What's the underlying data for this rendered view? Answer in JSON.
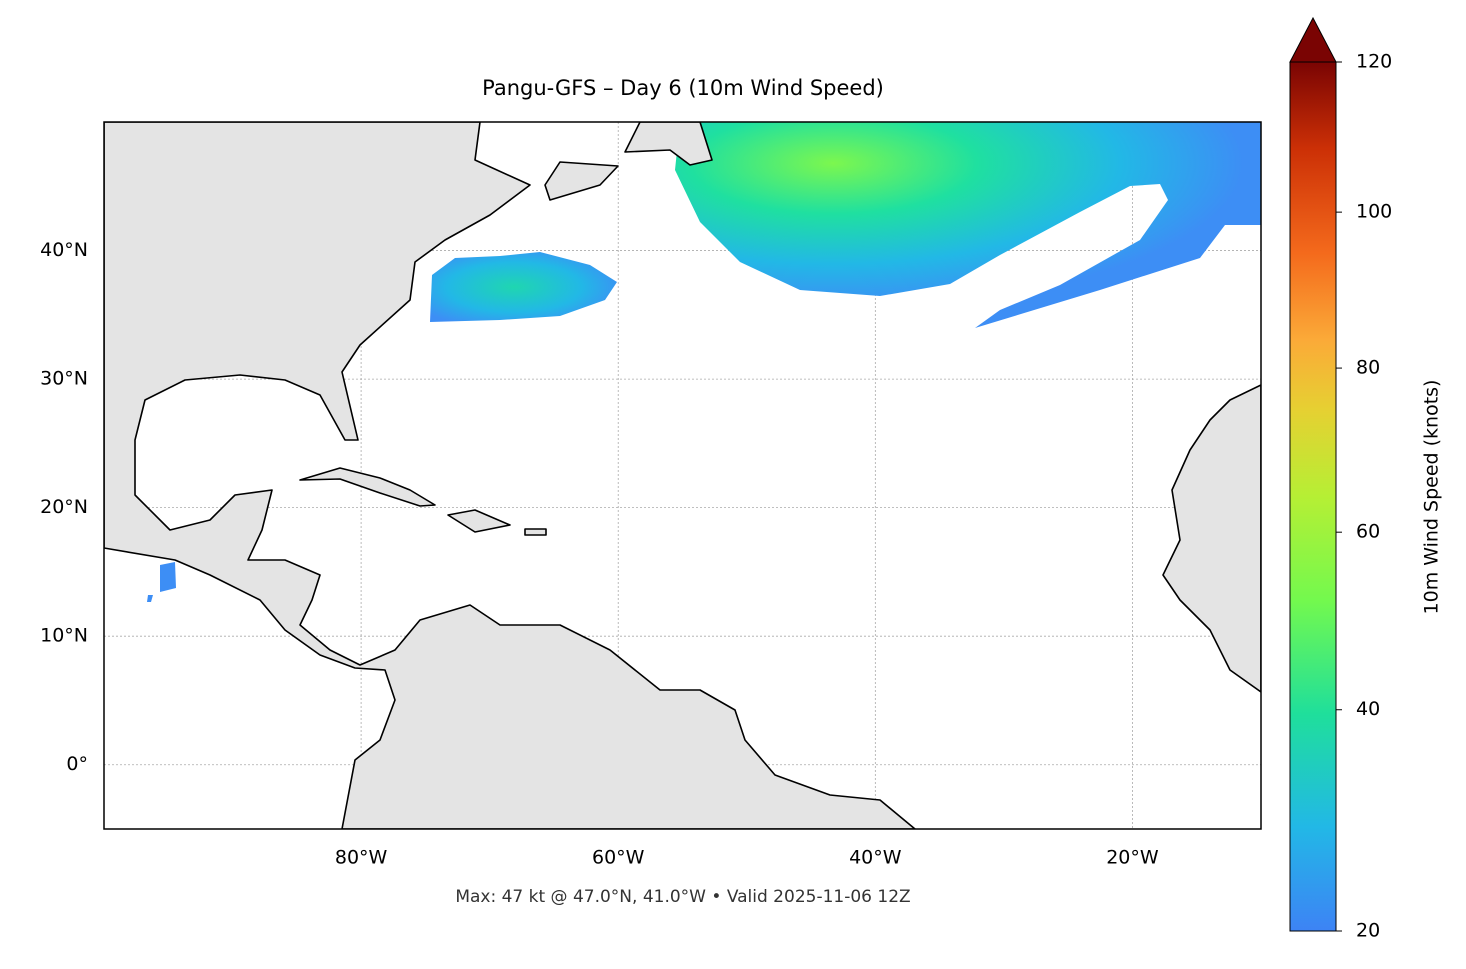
{
  "chart_data": {
    "type": "map",
    "title": "Pangu-GFS – Day 6 (10m Wind Speed)",
    "footer": "Max: 47 kt @ 47.0°N, 41.0°W • Valid 2025-11-06 12Z",
    "xlim": [
      -100,
      -10
    ],
    "ylim": [
      -5,
      50
    ],
    "xticks": [
      {
        "value": -80,
        "label": "80°W"
      },
      {
        "value": -60,
        "label": "60°W"
      },
      {
        "value": -40,
        "label": "40°W"
      },
      {
        "value": -20,
        "label": "20°W"
      }
    ],
    "yticks": [
      {
        "value": 0,
        "label": "0°"
      },
      {
        "value": 10,
        "label": "10°N"
      },
      {
        "value": 20,
        "label": "20°N"
      },
      {
        "value": 30,
        "label": "30°N"
      },
      {
        "value": 40,
        "label": "40°N"
      }
    ],
    "grid": true,
    "colorbar": {
      "label": "10m Wind Speed (knots)",
      "lim": [
        20,
        120
      ],
      "ticks": [
        20,
        40,
        60,
        80,
        100,
        120
      ],
      "gamma": 0.85,
      "extend": "max"
    }
  }
}
